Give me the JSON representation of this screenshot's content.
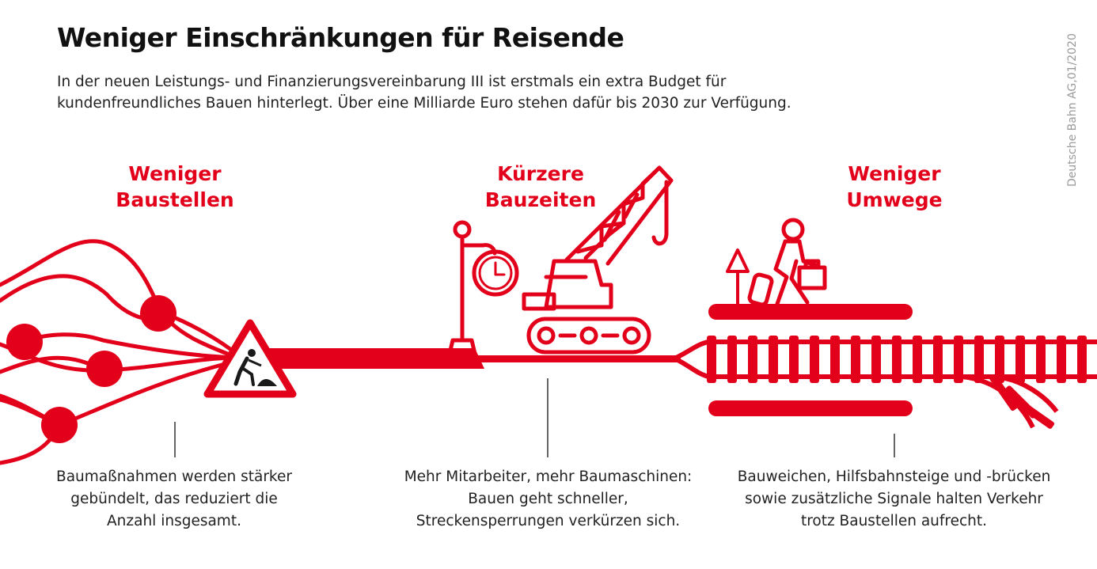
{
  "title": "Weniger Einschränkungen für Reisende",
  "intro": "In der neuen Leistungs- und Finanzierungsvereinbarung III ist erstmals ein extra Budget für kundenfreundliches Bauen hinterlegt. Über eine Milliarde Euro stehen dafür bis 2030 zur Verfügung.",
  "credit": "Deutsche Bahn AG,01/2020",
  "colors": {
    "accent": "#e3001b",
    "text": "#222222",
    "credit": "#9a9a9a"
  },
  "sections": [
    {
      "heading_line1": "Weniger",
      "heading_line2": "Baustellen",
      "caption_lines": [
        "Baumaßnahmen werden stärker",
        "gebündelt, das reduziert die",
        "Anzahl insgesamt."
      ],
      "icons": [
        "network-nodes-icon",
        "construction-warning-sign-icon"
      ]
    },
    {
      "heading_line1": "Kürzere",
      "heading_line2": "Bauzeiten",
      "caption_lines": [
        "Mehr Mitarbeiter, mehr Baumaschinen:",
        "Bauen geht schneller,",
        "Streckensperrungen verkürzen sich."
      ],
      "icons": [
        "station-clock-icon",
        "crawler-crane-icon"
      ]
    },
    {
      "heading_line1": "Weniger",
      "heading_line2": "Umwege",
      "caption_lines": [
        "Bauweichen, Hilfsbahnsteige und -brücken",
        "sowie zusätzliche Signale halten Verkehr",
        "trotz Baustellen aufrecht."
      ],
      "icons": [
        "signal-arrow-icon",
        "traveler-with-luggage-icon",
        "railway-track-icon"
      ]
    }
  ]
}
